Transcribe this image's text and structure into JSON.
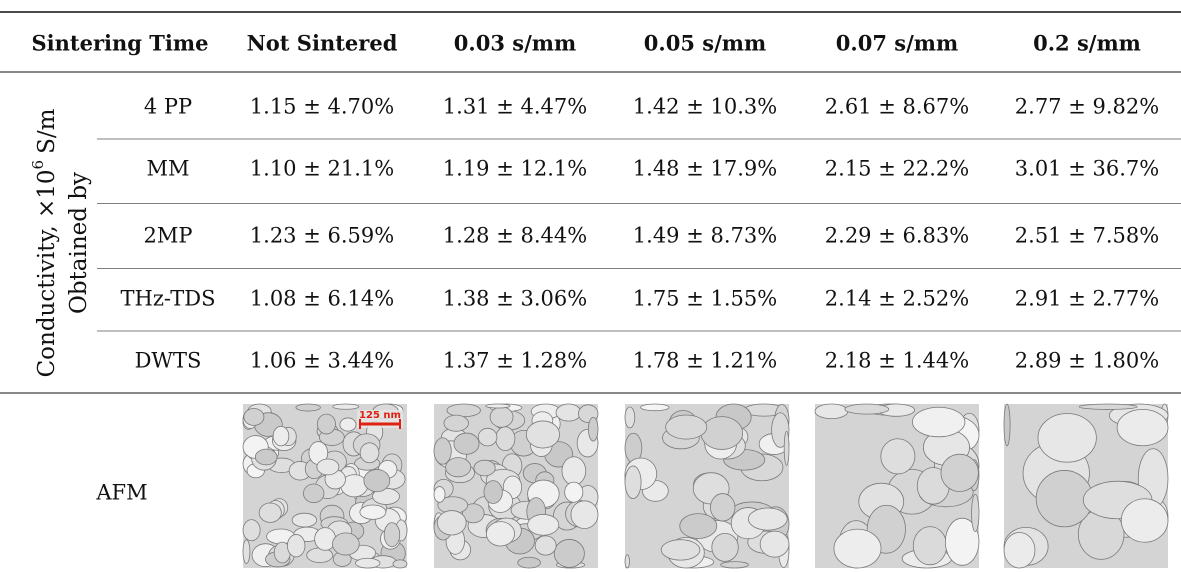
{
  "header": [
    "Sintering Time",
    "Not Sintered",
    "0.03 s/mm",
    "0.05 s/mm",
    "0.07 s/mm",
    "0.2 s/mm"
  ],
  "row_group_label": {
    "text": "Conductivity, ×10",
    "exponent": "6",
    "unit": "S/m",
    "subtext": "Obtained by"
  },
  "rows": [
    {
      "label": "4 PP",
      "cells": [
        "1.15 ± 4.70%",
        "1.31 ± 4.47%",
        "1.42 ± 10.3%",
        "2.61 ± 8.67%",
        "2.77 ± 9.82%"
      ]
    },
    {
      "label": "MM",
      "cells": [
        "1.10 ± 21.1%",
        "1.19 ± 12.1%",
        "1.48 ± 17.9%",
        "2.15 ± 22.2%",
        "3.01 ± 36.7%"
      ]
    },
    {
      "label": "2MP",
      "cells": [
        "1.23 ± 6.59%",
        "1.28 ± 8.44%",
        "1.49 ± 8.73%",
        "2.29 ± 6.83%",
        "2.51 ± 7.58%"
      ]
    },
    {
      "label": "THz-TDS",
      "cells": [
        "1.08 ± 6.14%",
        "1.38 ± 3.06%",
        "1.75 ± 1.55%",
        "2.14 ± 2.52%",
        "2.91 ± 2.77%"
      ]
    },
    {
      "label": "DWTS",
      "cells": [
        "1.06 ± 3.44%",
        "1.37 ± 1.28%",
        "1.78 ± 1.21%",
        "2.18 ± 1.44%",
        "2.89 ± 1.80%"
      ]
    }
  ],
  "afm": {
    "label": "AFM",
    "scale_bar": "125 nm"
  }
}
